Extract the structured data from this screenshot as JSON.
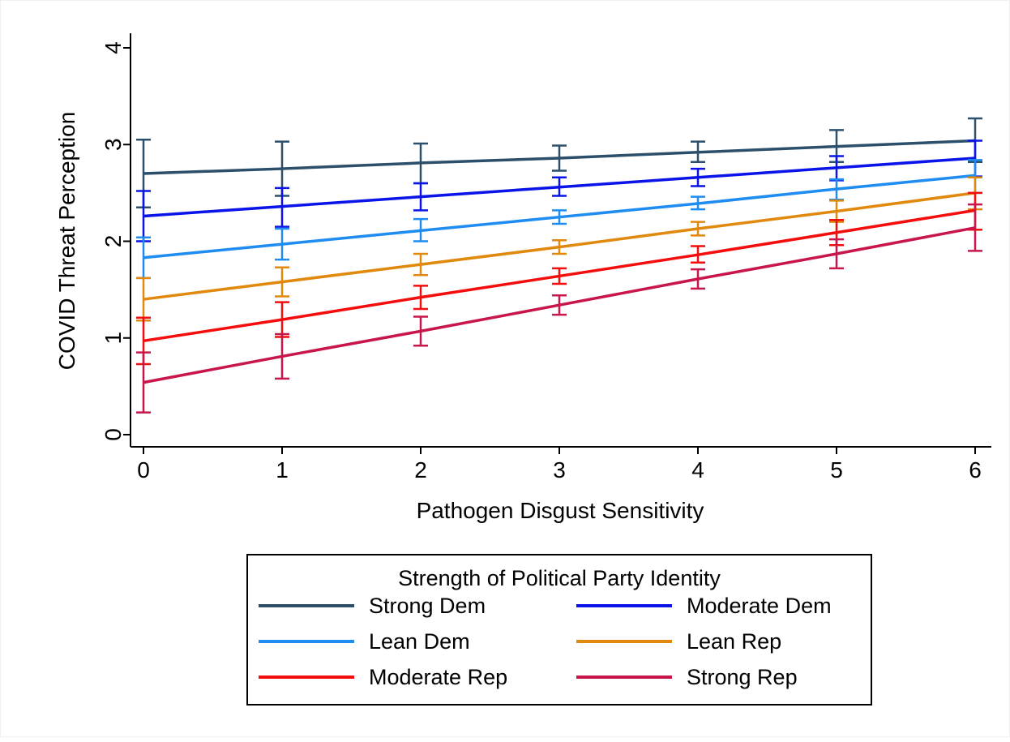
{
  "chart_data": {
    "type": "line",
    "title": "",
    "xlabel": "Pathogen Disgust Sensitivity",
    "ylabel": "COVID Threat Perception",
    "x": [
      0,
      1,
      2,
      3,
      4,
      5,
      6
    ],
    "xlim": [
      0,
      6
    ],
    "ylim": [
      0,
      4
    ],
    "xticks": [
      "0",
      "1",
      "2",
      "3",
      "4",
      "5",
      "6"
    ],
    "yticks": [
      "0",
      "1",
      "2",
      "3",
      "4"
    ],
    "grid": false,
    "error_bars": "confidence intervals",
    "legend": {
      "title": "Strength of Political Party Identity",
      "placement": "bottom",
      "columns": 2
    },
    "series": [
      {
        "name": "Strong Dem",
        "color": "#2c4f6b",
        "values": [
          2.7,
          2.75,
          2.81,
          2.86,
          2.92,
          2.98,
          3.04
        ],
        "lower": [
          2.35,
          2.47,
          2.6,
          2.73,
          2.82,
          2.82,
          2.82
        ],
        "upper": [
          3.05,
          3.03,
          3.01,
          2.99,
          3.03,
          3.15,
          3.27
        ]
      },
      {
        "name": "Moderate Dem",
        "color": "#0a14e8",
        "values": [
          2.26,
          2.36,
          2.46,
          2.56,
          2.66,
          2.76,
          2.86
        ],
        "lower": [
          2.0,
          2.15,
          2.32,
          2.47,
          2.57,
          2.63,
          2.67
        ],
        "upper": [
          2.52,
          2.55,
          2.6,
          2.66,
          2.75,
          2.88,
          3.04
        ]
      },
      {
        "name": "Lean Dem",
        "color": "#1e8cf0",
        "values": [
          1.83,
          1.97,
          2.11,
          2.25,
          2.39,
          2.54,
          2.68
        ],
        "lower": [
          1.62,
          1.81,
          2.0,
          2.18,
          2.33,
          2.43,
          2.5
        ],
        "upper": [
          2.04,
          2.13,
          2.23,
          2.32,
          2.46,
          2.64,
          2.84
        ]
      },
      {
        "name": "Lean Rep",
        "color": "#e0890e",
        "values": [
          1.4,
          1.58,
          1.76,
          1.94,
          2.13,
          2.31,
          2.5
        ],
        "lower": [
          1.18,
          1.43,
          1.65,
          1.87,
          2.06,
          2.2,
          2.33
        ],
        "upper": [
          1.62,
          1.73,
          1.87,
          2.01,
          2.2,
          2.42,
          2.66
        ]
      },
      {
        "name": "Moderate Rep",
        "color": "#f40d0d",
        "values": [
          0.97,
          1.19,
          1.42,
          1.64,
          1.86,
          2.09,
          2.32
        ],
        "lower": [
          0.73,
          1.01,
          1.3,
          1.56,
          1.78,
          1.96,
          2.12
        ],
        "upper": [
          1.21,
          1.37,
          1.54,
          1.72,
          1.95,
          2.22,
          2.5
        ]
      },
      {
        "name": "Strong Rep",
        "color": "#c8164a",
        "values": [
          0.54,
          0.81,
          1.07,
          1.34,
          1.61,
          1.87,
          2.14
        ],
        "lower": [
          0.23,
          0.58,
          0.92,
          1.24,
          1.51,
          1.72,
          1.9
        ],
        "upper": [
          0.85,
          1.04,
          1.22,
          1.44,
          1.71,
          2.02,
          2.38
        ]
      }
    ]
  }
}
